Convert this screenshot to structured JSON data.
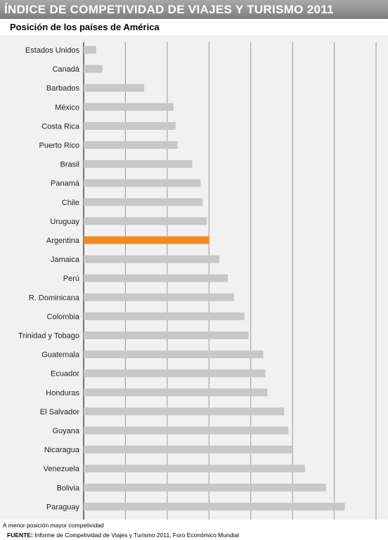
{
  "title": "ÍNDICE DE COMPETIVIDAD DE VIAJES Y TURISMO 2011",
  "note": "A menor posición mayor competividad",
  "source": {
    "label": "FUENTE:",
    "text": "Informe de Competividad de Viajes y Turismo 2011, Foro Económico Mundial"
  },
  "colors": {
    "bar": "#c8c8c8",
    "highlight": "#ef8a25",
    "title_bg": "#8f8f8f",
    "panel_bg": "#f1f1f1"
  },
  "chart_data": {
    "type": "bar",
    "orientation": "horizontal",
    "title": "Posición de los países de América",
    "categories": [
      "Estados Unidos",
      "Canadá",
      "Barbados",
      "México",
      "Costa Rica",
      "Puerto Rico",
      "Brasil",
      "Panamá",
      "Chile",
      "Uruguay",
      "Argentina",
      "Jamaica",
      "Perú",
      "R. Dominicana",
      "Colombia",
      "Trinidad y Tobago",
      "Guatemala",
      "Ecuador",
      "Honduras",
      "El Salvador",
      "Guyana",
      "Nicaragua",
      "Venezuela",
      "Bolivia",
      "Paraguay"
    ],
    "values": [
      6,
      9,
      29,
      43,
      44,
      45,
      52,
      56,
      57,
      59,
      60,
      65,
      69,
      72,
      77,
      79,
      86,
      87,
      88,
      96,
      98,
      100,
      106,
      116,
      125
    ],
    "highlight": "Argentina",
    "xlim": [
      0,
      140
    ],
    "grid": true,
    "xlabel": "",
    "ylabel": ""
  }
}
